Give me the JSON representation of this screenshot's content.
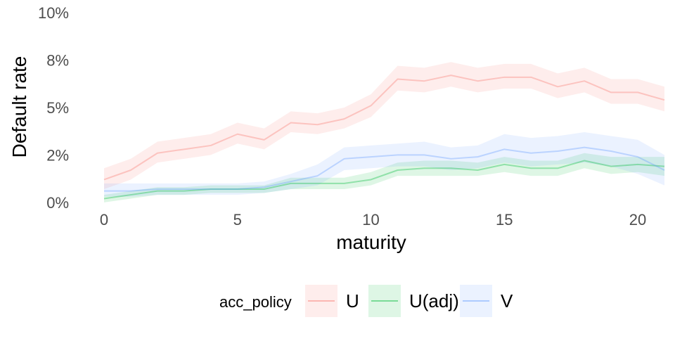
{
  "chart_data": {
    "type": "line",
    "xlabel": "maturity",
    "ylabel": "Default rate",
    "xlim": [
      0,
      21
    ],
    "ylim": [
      -0.45,
      10.3
    ],
    "x_ticks": [
      0,
      5,
      10,
      15,
      20
    ],
    "y_ticks": [
      {
        "value": 0,
        "label": "0%"
      },
      {
        "value": 2.5,
        "label": "2%"
      },
      {
        "value": 5,
        "label": "5%"
      },
      {
        "value": 7.5,
        "label": "8%"
      },
      {
        "value": 10,
        "label": "10%"
      }
    ],
    "grid": false,
    "legend": {
      "title": "acc_policy",
      "position": "bottom"
    },
    "series": [
      {
        "name": "U",
        "color": "#F8766D",
        "x": [
          0,
          1,
          2,
          3,
          4,
          5,
          6,
          7,
          8,
          9,
          10,
          11,
          12,
          13,
          14,
          15,
          16,
          17,
          18,
          19,
          20,
          21
        ],
        "y": [
          1.2,
          1.7,
          2.6,
          2.8,
          3.0,
          3.6,
          3.3,
          4.2,
          4.1,
          4.4,
          5.1,
          6.5,
          6.4,
          6.7,
          6.4,
          6.6,
          6.6,
          6.1,
          6.4,
          5.8,
          5.8,
          5.4
        ],
        "lower": [
          0.7,
          1.2,
          2.1,
          2.3,
          2.5,
          3.1,
          2.8,
          3.7,
          3.6,
          3.9,
          4.5,
          5.9,
          5.8,
          6.1,
          5.8,
          6.0,
          6.0,
          5.5,
          5.8,
          5.2,
          5.2,
          4.8
        ],
        "upper": [
          1.8,
          2.3,
          3.2,
          3.4,
          3.6,
          4.2,
          3.9,
          4.8,
          4.7,
          5.0,
          5.7,
          7.2,
          7.1,
          7.4,
          7.1,
          7.3,
          7.3,
          6.8,
          7.1,
          6.5,
          6.5,
          6.1
        ]
      },
      {
        "name": "U(adj)",
        "color": "#00BA38",
        "x": [
          0,
          1,
          2,
          3,
          4,
          5,
          6,
          7,
          8,
          9,
          10,
          11,
          12,
          13,
          14,
          15,
          16,
          17,
          18,
          19,
          20,
          21
        ],
        "y": [
          0.2,
          0.4,
          0.6,
          0.6,
          0.7,
          0.7,
          0.7,
          1.0,
          1.0,
          1.0,
          1.2,
          1.7,
          1.8,
          1.8,
          1.7,
          2.0,
          1.8,
          1.8,
          2.2,
          1.9,
          2.0,
          1.9
        ],
        "lower": [
          0.0,
          0.2,
          0.4,
          0.4,
          0.5,
          0.5,
          0.5,
          0.7,
          0.7,
          0.7,
          0.9,
          1.4,
          1.4,
          1.4,
          1.4,
          1.6,
          1.4,
          1.4,
          1.8,
          1.5,
          1.6,
          1.4
        ],
        "upper": [
          0.4,
          0.6,
          0.8,
          0.8,
          0.9,
          0.9,
          0.9,
          1.3,
          1.3,
          1.3,
          1.6,
          2.1,
          2.2,
          2.2,
          2.1,
          2.4,
          2.2,
          2.2,
          2.6,
          2.4,
          2.4,
          2.4
        ]
      },
      {
        "name": "V",
        "color": "#619CFF",
        "x": [
          0,
          1,
          2,
          3,
          4,
          5,
          6,
          7,
          8,
          9,
          10,
          11,
          12,
          13,
          14,
          15,
          16,
          17,
          18,
          19,
          20,
          21
        ],
        "y": [
          0.6,
          0.6,
          0.7,
          0.7,
          0.7,
          0.7,
          0.8,
          1.1,
          1.4,
          2.3,
          2.4,
          2.5,
          2.5,
          2.3,
          2.4,
          2.8,
          2.6,
          2.7,
          2.9,
          2.7,
          2.4,
          1.7
        ],
        "lower": [
          0.3,
          0.3,
          0.4,
          0.4,
          0.4,
          0.4,
          0.5,
          0.7,
          0.9,
          1.7,
          1.8,
          1.9,
          1.9,
          1.7,
          1.8,
          2.1,
          1.9,
          2.0,
          2.1,
          1.9,
          1.5,
          0.9
        ],
        "upper": [
          1.0,
          1.0,
          1.0,
          1.0,
          1.0,
          1.0,
          1.1,
          1.5,
          2.0,
          2.9,
          3.0,
          3.1,
          3.2,
          2.9,
          3.0,
          3.6,
          3.4,
          3.5,
          3.7,
          3.5,
          3.3,
          2.5
        ]
      }
    ]
  }
}
